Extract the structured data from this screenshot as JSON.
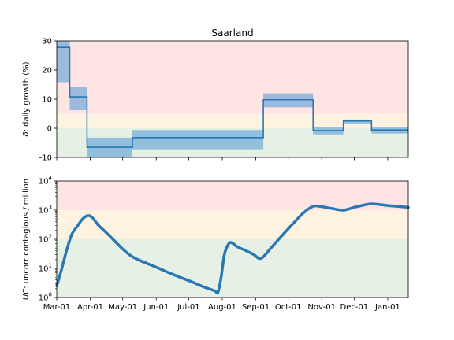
{
  "chart_data": [
    {
      "type": "line",
      "title": "Saarland",
      "ylabel_var": "δ",
      "ylabel_rest": ": daily growth (%)",
      "ylim": [
        -10,
        30
      ],
      "yticks": [
        -10,
        0,
        10,
        20,
        30
      ],
      "xlim": [
        "2020-03-01",
        "2021-01-20"
      ],
      "grid": false,
      "zones": [
        {
          "from": 5,
          "to": 30,
          "color": "#ffe4e4"
        },
        {
          "from": 0,
          "to": 5,
          "color": "#fdf3e0"
        },
        {
          "from": -10,
          "to": 0,
          "color": "#e6f0e4"
        }
      ],
      "series": [
        {
          "style": "step",
          "color": "#2a77b4",
          "bands": [
            {
              "x0": "2020-03-01",
              "x1": "2020-03-13",
              "y": 27.8,
              "lo": 15.8,
              "hi": 30
            },
            {
              "x0": "2020-03-13",
              "x1": "2020-03-29",
              "y": 10.8,
              "lo": 6.2,
              "hi": 14.3
            },
            {
              "x0": "2020-03-29",
              "x1": "2020-05-10",
              "y": -6.5,
              "lo": -10,
              "hi": -3.2
            },
            {
              "x0": "2020-05-10",
              "x1": "2020-09-08",
              "y": -3.2,
              "lo": -7.2,
              "hi": -0.6
            },
            {
              "x0": "2020-09-08",
              "x1": "2020-10-24",
              "y": 9.8,
              "lo": 7.2,
              "hi": 12.0
            },
            {
              "x0": "2020-10-24",
              "x1": "2020-11-21",
              "y": -0.8,
              "lo": -2.1,
              "hi": 0.3
            },
            {
              "x0": "2020-11-21",
              "x1": "2020-12-17",
              "y": 2.5,
              "lo": 1.5,
              "hi": 3.0
            },
            {
              "x0": "2020-12-17",
              "x1": "2021-01-20",
              "y": -0.6,
              "lo": -1.8,
              "hi": 0.4
            }
          ]
        }
      ]
    },
    {
      "type": "line",
      "ylabel_var": "UC",
      "ylabel_rest": ": uncorr contagious / million",
      "yscale": "log",
      "ylim": [
        1,
        10000
      ],
      "ytick_exponents": [
        "0",
        "1",
        "2",
        "3",
        "4"
      ],
      "xlim": [
        "2020-03-01",
        "2021-01-20"
      ],
      "xticks": [
        {
          "date": "2020-03-01",
          "label": "Mar-01"
        },
        {
          "date": "2020-04-01",
          "label": "Apr-01"
        },
        {
          "date": "2020-05-01",
          "label": "May-01"
        },
        {
          "date": "2020-06-01",
          "label": "Jun-01"
        },
        {
          "date": "2020-07-01",
          "label": "Jul-01"
        },
        {
          "date": "2020-08-01",
          "label": "Aug-01"
        },
        {
          "date": "2020-09-01",
          "label": "Sep-01"
        },
        {
          "date": "2020-10-01",
          "label": "Oct-01"
        },
        {
          "date": "2020-11-01",
          "label": "Nov-01"
        },
        {
          "date": "2020-12-01",
          "label": "Dec-01"
        },
        {
          "date": "2021-01-01",
          "label": "Jan-01"
        }
      ],
      "grid": false,
      "zones": [
        {
          "from": 1000,
          "to": 10000,
          "color": "#ffe4e4"
        },
        {
          "from": 100,
          "to": 1000,
          "color": "#fdf3e0"
        },
        {
          "from": 1,
          "to": 100,
          "color": "#e6f0e4"
        }
      ],
      "series": [
        {
          "color": "#2a77b4",
          "points": [
            [
              "2020-03-01",
              2.5
            ],
            [
              "2020-03-05",
              8
            ],
            [
              "2020-03-10",
              40
            ],
            [
              "2020-03-15",
              150
            ],
            [
              "2020-03-20",
              280
            ],
            [
              "2020-03-25",
              500
            ],
            [
              "2020-03-30",
              650
            ],
            [
              "2020-04-03",
              550
            ],
            [
              "2020-04-08",
              320
            ],
            [
              "2020-04-15",
              180
            ],
            [
              "2020-04-22",
              100
            ],
            [
              "2020-04-30",
              50
            ],
            [
              "2020-05-08",
              28
            ],
            [
              "2020-05-15",
              20
            ],
            [
              "2020-06-01",
              11
            ],
            [
              "2020-06-15",
              6.5
            ],
            [
              "2020-07-01",
              3.8
            ],
            [
              "2020-07-15",
              2.3
            ],
            [
              "2020-07-25",
              1.7
            ],
            [
              "2020-07-28",
              1.5
            ],
            [
              "2020-07-31",
              5
            ],
            [
              "2020-08-03",
              30
            ],
            [
              "2020-08-07",
              70
            ],
            [
              "2020-08-10",
              75
            ],
            [
              "2020-08-15",
              55
            ],
            [
              "2020-08-22",
              42
            ],
            [
              "2020-08-30",
              30
            ],
            [
              "2020-09-04",
              22
            ],
            [
              "2020-09-08",
              25
            ],
            [
              "2020-09-15",
              50
            ],
            [
              "2020-09-25",
              130
            ],
            [
              "2020-10-05",
              330
            ],
            [
              "2020-10-15",
              800
            ],
            [
              "2020-10-24",
              1350
            ],
            [
              "2020-10-30",
              1350
            ],
            [
              "2020-11-10",
              1150
            ],
            [
              "2020-11-21",
              1000
            ],
            [
              "2020-12-01",
              1250
            ],
            [
              "2020-12-10",
              1500
            ],
            [
              "2020-12-17",
              1650
            ],
            [
              "2020-12-25",
              1550
            ],
            [
              "2021-01-05",
              1400
            ],
            [
              "2021-01-20",
              1250
            ]
          ]
        }
      ]
    }
  ]
}
